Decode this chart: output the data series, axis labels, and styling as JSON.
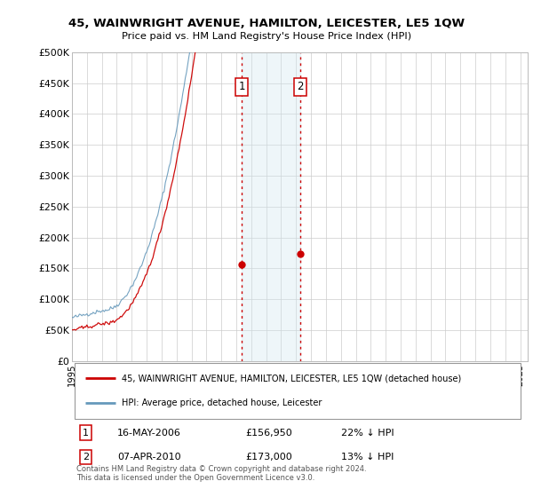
{
  "title": "45, WAINWRIGHT AVENUE, HAMILTON, LEICESTER, LE5 1QW",
  "subtitle": "Price paid vs. HM Land Registry's House Price Index (HPI)",
  "ylabel_ticks": [
    "£0",
    "£50K",
    "£100K",
    "£150K",
    "£200K",
    "£250K",
    "£300K",
    "£350K",
    "£400K",
    "£450K",
    "£500K"
  ],
  "ytick_values": [
    0,
    50000,
    100000,
    150000,
    200000,
    250000,
    300000,
    350000,
    400000,
    450000,
    500000
  ],
  "ylim": [
    0,
    500000
  ],
  "xlim_start": 1995.25,
  "xlim_end": 2025.5,
  "line_red_color": "#cc0000",
  "line_blue_color": "#6699bb",
  "vline_color": "#cc0000",
  "sale1_x": 2006.37,
  "sale1_y": 156950,
  "sale2_x": 2010.27,
  "sale2_y": 173000,
  "shade_color": "#d0e8f0",
  "shade_alpha": 0.35,
  "legend_line1": "45, WAINWRIGHT AVENUE, HAMILTON, LEICESTER, LE5 1QW (detached house)",
  "legend_line2": "HPI: Average price, detached house, Leicester",
  "table_row1": [
    "1",
    "16-MAY-2006",
    "£156,950",
    "22% ↓ HPI"
  ],
  "table_row2": [
    "2",
    "07-APR-2010",
    "£173,000",
    "13% ↓ HPI"
  ],
  "footnote": "Contains HM Land Registry data © Crown copyright and database right 2024.\nThis data is licensed under the Open Government Licence v3.0.",
  "background_color": "#ffffff",
  "grid_color": "#cccccc"
}
